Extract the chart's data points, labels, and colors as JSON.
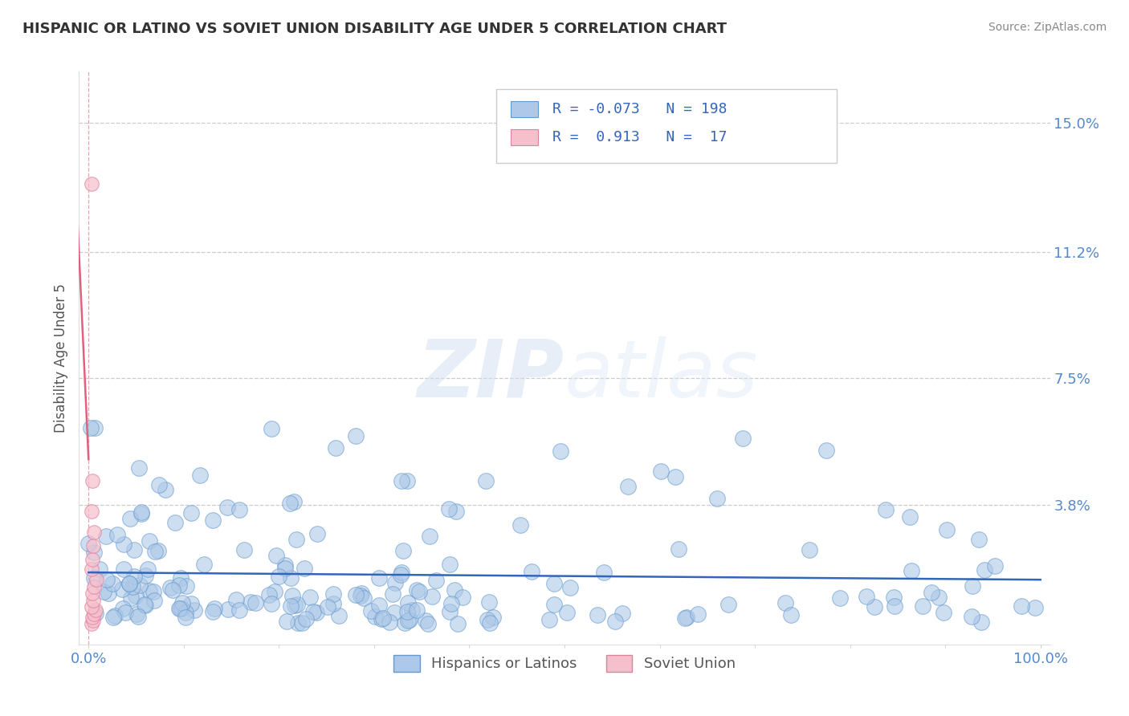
{
  "title": "HISPANIC OR LATINO VS SOVIET UNION DISABILITY AGE UNDER 5 CORRELATION CHART",
  "source": "Source: ZipAtlas.com",
  "xlabel": "",
  "ylabel": "Disability Age Under 5",
  "xlim": [
    -1,
    101
  ],
  "ylim": [
    -0.3,
    16.5
  ],
  "yticks": [
    3.8,
    7.5,
    11.2,
    15.0
  ],
  "ytick_labels": [
    "3.8%",
    "7.5%",
    "11.2%",
    "15.0%"
  ],
  "xticks": [
    0,
    100
  ],
  "xtick_labels": [
    "0.0%",
    "100.0%"
  ],
  "series1": {
    "name": "Hispanics or Latinos",
    "R": -0.073,
    "N": 198,
    "color": "#adc8e8",
    "edge_color": "#6699cc",
    "line_color": "#3366bb"
  },
  "series2": {
    "name": "Soviet Union",
    "R": 0.913,
    "N": 17,
    "color": "#f5c0cc",
    "edge_color": "#e080a0",
    "line_color": "#e06080"
  },
  "watermark_zip": "ZIP",
  "watermark_atlas": "atlas",
  "background_color": "#ffffff",
  "grid_color": "#cccccc",
  "title_color": "#333333",
  "axis_color": "#5588cc",
  "legend_color": "#3366bb"
}
